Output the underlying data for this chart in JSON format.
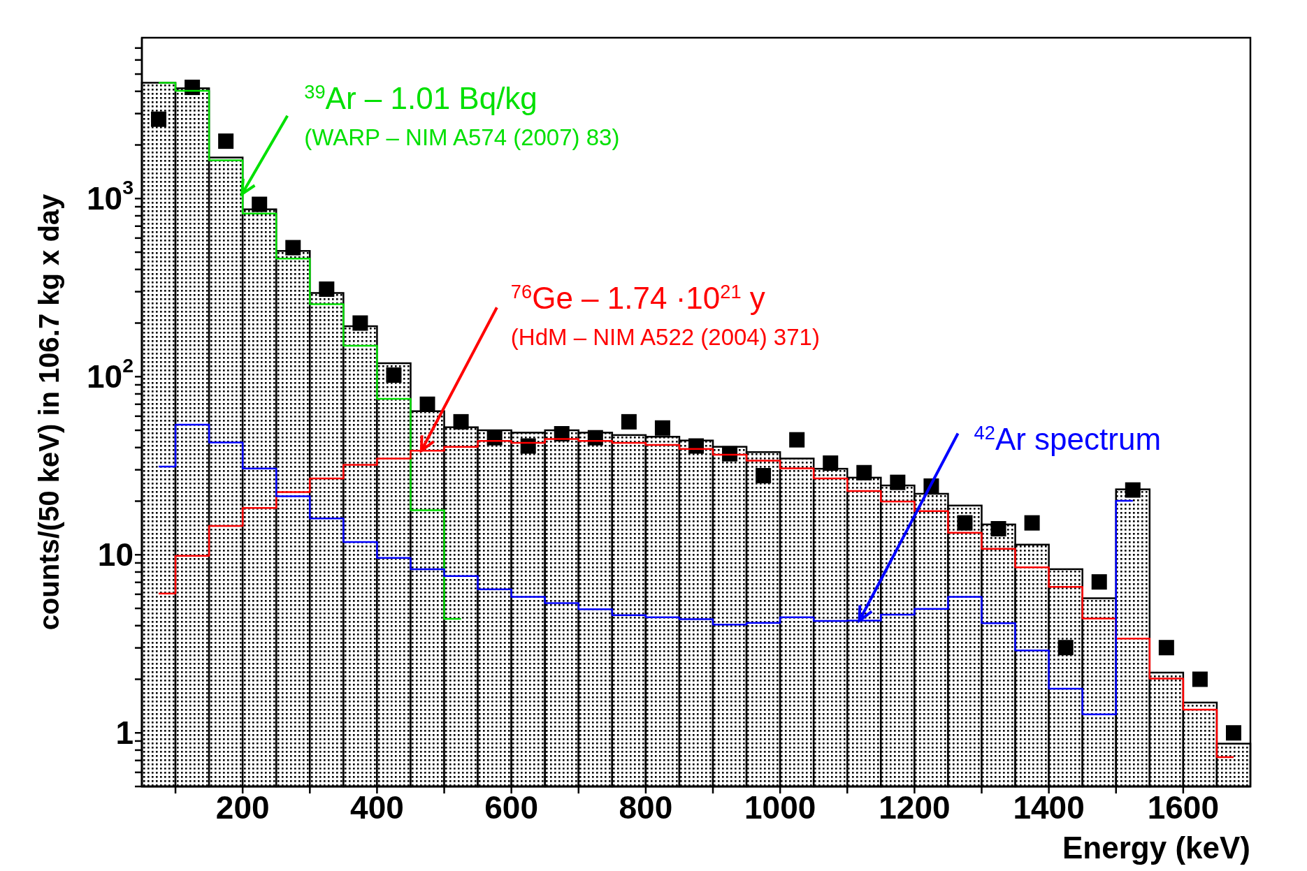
{
  "chart_data": {
    "type": "histogram",
    "xlabel": "Energy (keV)",
    "ylabel": "counts/(50 keV) in 106.7 kg x day",
    "bins": [
      50,
      100,
      150,
      200,
      250,
      300,
      350,
      400,
      450,
      500,
      550,
      600,
      650,
      700,
      750,
      800,
      850,
      900,
      950,
      1000,
      1050,
      1100,
      1150,
      1200,
      1250,
      1300,
      1350,
      1400,
      1450,
      1500,
      1550,
      1600,
      1650,
      1700
    ],
    "x": [
      75,
      125,
      175,
      225,
      275,
      325,
      375,
      425,
      475,
      525,
      575,
      625,
      675,
      725,
      775,
      825,
      875,
      925,
      975,
      1025,
      1075,
      1125,
      1175,
      1225,
      1275,
      1325,
      1375,
      1425,
      1475,
      1525,
      1575,
      1625,
      1675
    ],
    "series": [
      {
        "type": "histogram",
        "color": "#000000",
        "values": [
          4470,
          4160,
          1700,
          870,
          508,
          295,
          192,
          119,
          64,
          52,
          50,
          48.5,
          50,
          48.5,
          47,
          46,
          43.8,
          40.4,
          37.7,
          34.7,
          30.4,
          27.1,
          24.5,
          22.0,
          18.9,
          14.8,
          11.4,
          8.3,
          5.7,
          23.3,
          2.18,
          1.48,
          0.87
        ]
      },
      {
        "type": "step",
        "color": "#00e000",
        "x": [
          75,
          125,
          175,
          225,
          275,
          325,
          375,
          425,
          475,
          525
        ],
        "values": [
          4470,
          4030,
          1640,
          823,
          460,
          255,
          149,
          75,
          17.8,
          4.37
        ]
      },
      {
        "type": "step",
        "color": "#ff0000",
        "values": [
          6.06,
          9.86,
          14.5,
          18.3,
          22.5,
          26.8,
          32.0,
          34.7,
          38.4,
          40.4,
          43.6,
          42.5,
          44.7,
          43.6,
          42.5,
          41.4,
          39.3,
          36.5,
          33.8,
          30.6,
          26.8,
          22.8,
          19.9,
          17.6,
          13.3,
          10.8,
          8.5,
          6.6,
          4.39,
          3.38,
          2.02,
          1.35,
          0.73
        ]
      },
      {
        "type": "step",
        "color": "#0000ff",
        "x": [
          75,
          125,
          175,
          225,
          275,
          325,
          375,
          425,
          475,
          525,
          575,
          625,
          675,
          725,
          775,
          825,
          875,
          925,
          975,
          1025,
          1075,
          1125,
          1175,
          1225,
          1275,
          1325,
          1375,
          1425,
          1475,
          1525
        ],
        "values": [
          31.3,
          53.8,
          42.7,
          30.5,
          21.3,
          16.0,
          11.8,
          9.6,
          8.3,
          7.6,
          6.4,
          5.8,
          5.35,
          4.95,
          4.58,
          4.46,
          4.35,
          4.05,
          4.15,
          4.46,
          4.25,
          4.27,
          4.61,
          4.97,
          5.8,
          4.13,
          2.9,
          1.77,
          1.27,
          20.1
        ]
      },
      {
        "type": "scatter",
        "color": "#000000",
        "marker": "square",
        "values": [
          2790,
          4210,
          2100,
          928,
          530,
          310,
          200,
          102,
          70,
          55.8,
          45.4,
          40.8,
          47.8,
          45.4,
          55.8,
          51.5,
          40.8,
          36.9,
          27.8,
          44.2,
          32.7,
          28.9,
          25.5,
          24.3,
          15.1,
          14.0,
          15.1,
          3.01,
          7.04,
          23.1,
          3.01,
          2.0,
          1.0
        ]
      }
    ],
    "grid": false,
    "legend": false,
    "log": "y",
    "xlim": [
      50,
      1700
    ],
    "xticks": [
      {
        "value": 100,
        "label": null
      },
      200,
      {
        "value": 300,
        "label": null
      },
      400,
      {
        "value": 500,
        "label": null
      },
      600,
      {
        "value": 700,
        "label": null
      },
      800,
      {
        "value": 900,
        "label": null
      },
      1000,
      {
        "value": 1100,
        "label": null
      },
      1200,
      {
        "value": 1300,
        "label": null
      },
      1400,
      {
        "value": 1500,
        "label": null
      },
      1600
    ],
    "ylim": [
      0.5,
      8000
    ],
    "yticks": [
      {
        "value": 0.5,
        "label": null
      },
      {
        "value": 0.6,
        "label": null
      },
      {
        "value": 0.7,
        "label": null
      },
      {
        "value": 0.8,
        "label": null
      },
      {
        "value": 0.9,
        "label": null
      },
      1,
      {
        "value": 2,
        "label": null
      },
      {
        "value": 3,
        "label": null
      },
      {
        "value": 4,
        "label": null
      },
      {
        "value": 5,
        "label": null
      },
      {
        "value": 6,
        "label": null
      },
      {
        "value": 7,
        "label": null
      },
      {
        "value": 8,
        "label": null
      },
      {
        "value": 9,
        "label": null
      },
      10,
      {
        "value": 20,
        "label": null
      },
      {
        "value": 30,
        "label": null
      },
      {
        "value": 40,
        "label": null
      },
      {
        "value": 50,
        "label": null
      },
      {
        "value": 60,
        "label": null
      },
      {
        "value": 70,
        "label": null
      },
      {
        "value": 80,
        "label": null
      },
      {
        "value": 90,
        "label": null
      },
      {
        "value": 100,
        "label": "10$^{2}$"
      },
      {
        "value": 200,
        "label": null
      },
      {
        "value": 300,
        "label": null
      },
      {
        "value": 400,
        "label": null
      },
      {
        "value": 500,
        "label": null
      },
      {
        "value": 600,
        "label": null
      },
      {
        "value": 700,
        "label": null
      },
      {
        "value": 800,
        "label": null
      },
      {
        "value": 900,
        "label": null
      },
      {
        "value": 1000,
        "label": "10$^{3}$"
      },
      {
        "value": 2000,
        "label": null
      },
      {
        "value": 3000,
        "label": null
      },
      {
        "value": 4000,
        "label": null
      },
      {
        "value": 5000,
        "label": null
      },
      {
        "value": 6000,
        "label": null
      },
      {
        "value": 7000,
        "label": null
      }
    ],
    "annotations": [
      {
        "text": "$^{39}$Ar – 1.01 Bq/kg\n(WARP – NIM A574 (2007) 83)",
        "x": 199,
        "y": 1060
      },
      {
        "text": "$^{76}$Ge – 1.74 ·10$^{21}$ y\n(HdM – NIM A522 (2004) 371)",
        "x": 466,
        "y": 38.4
      },
      {
        "text": "$^{42}$Ar spectrum",
        "x": 1118,
        "y": 4.27
      }
    ]
  }
}
